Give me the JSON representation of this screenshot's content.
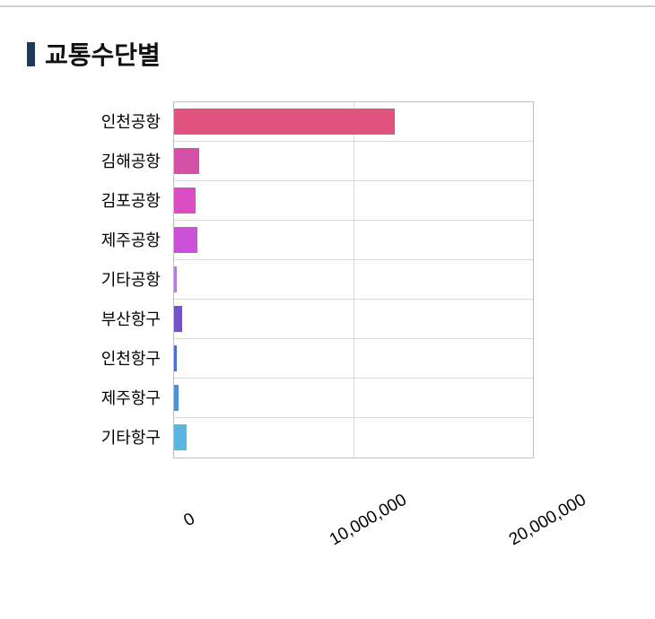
{
  "page": {
    "title": "교통수단별"
  },
  "styles": {
    "accent_marker": "#22395e",
    "grid_color": "#d9d9d9",
    "plot_border_color": "#bfbfbf",
    "top_rule_color": "#cfcfcf"
  },
  "chart_data": {
    "type": "bar",
    "orientation": "horizontal",
    "title": "교통수단별",
    "xlabel": "",
    "ylabel": "",
    "categories": [
      "인천공항",
      "김해공항",
      "김포공항",
      "제주공항",
      "기타공항",
      "부산항구",
      "인천항구",
      "제주항구",
      "기타항구"
    ],
    "values": [
      12300000,
      1400000,
      1200000,
      1300000,
      150000,
      450000,
      150000,
      250000,
      700000
    ],
    "bar_colors": [
      "#e1537f",
      "#d351a6",
      "#d94ec2",
      "#cb52d8",
      "#b57bdd",
      "#7253c8",
      "#4b6fd4",
      "#4b90d9",
      "#5ab5e0"
    ],
    "xlim": [
      0,
      20000000
    ],
    "x_ticks": [
      {
        "value": 0,
        "label": "0"
      },
      {
        "value": 10000000,
        "label": "10,000,000"
      },
      {
        "value": 20000000,
        "label": "20,000,000"
      }
    ],
    "grid": "vertical-gridlines-and-row-separators",
    "legend": "none",
    "tick_label_rotation_deg": -30
  }
}
